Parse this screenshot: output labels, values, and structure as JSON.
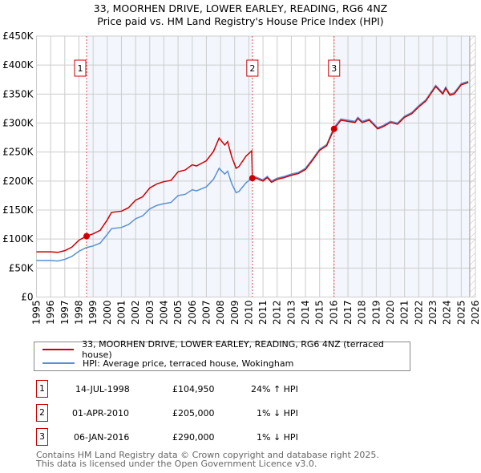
{
  "chart_data": {
    "type": "line",
    "title": "33, MOORHEN DRIVE, LOWER EARLEY, READING, RG6 4NZ",
    "subtitle": "Price paid vs. HM Land Registry's House Price Index (HPI)",
    "xlim": [
      1995,
      2026
    ],
    "ylim": [
      0,
      450000
    ],
    "y_ticks": [
      0,
      50000,
      100000,
      150000,
      200000,
      250000,
      300000,
      350000,
      400000,
      450000
    ],
    "y_tick_labels": [
      "£0",
      "£50K",
      "£100K",
      "£150K",
      "£200K",
      "£250K",
      "£300K",
      "£350K",
      "£400K",
      "£450K"
    ],
    "x_ticks": [
      "1995",
      "1996",
      "1997",
      "1998",
      "1999",
      "2000",
      "2001",
      "2002",
      "2003",
      "2004",
      "2005",
      "2006",
      "2007",
      "2008",
      "2009",
      "2010",
      "2011",
      "2012",
      "2013",
      "2014",
      "2015",
      "2016",
      "2017",
      "2018",
      "2019",
      "2020",
      "2021",
      "2022",
      "2023",
      "2024",
      "2025",
      "2026"
    ],
    "grid": true,
    "hatched_from": 2025.6,
    "series": [
      {
        "name": "33, MOORHEN DRIVE, LOWER EARLEY, READING, RG6 4NZ (terraced house)",
        "color": "#cc0000",
        "x": [
          1995,
          1996,
          1996.5,
          1997,
          1997.5,
          1998,
          1998.54,
          1999,
          1999.5,
          2000,
          2000.3,
          2001,
          2001.5,
          2002,
          2002.5,
          2003,
          2003.5,
          2004,
          2004.5,
          2005,
          2005.5,
          2006,
          2006.3,
          2007,
          2007.5,
          2007.9,
          2008.3,
          2008.5,
          2008.8,
          2009.1,
          2009.3,
          2009.8,
          2010.2,
          2010.25,
          2010.5,
          2011,
          2011.3,
          2011.6,
          2012,
          2012.5,
          2013,
          2013.5,
          2014,
          2014.5,
          2015,
          2015.5,
          2016.02,
          2016.5,
          2017,
          2017.5,
          2017.7,
          2018,
          2018.5,
          2018.9,
          2019.1,
          2019.5,
          2020,
          2020.5,
          2021,
          2021.5,
          2022,
          2022.5,
          2023,
          2023.2,
          2023.7,
          2023.9,
          2024.2,
          2024.5,
          2025,
          2025.5
        ],
        "y": [
          78000,
          78000,
          77000,
          80000,
          86000,
          98000,
          104950,
          109000,
          115000,
          133000,
          146000,
          148000,
          154000,
          167000,
          173000,
          188000,
          195000,
          199000,
          201000,
          216000,
          219000,
          228000,
          226000,
          235000,
          251000,
          274000,
          262000,
          268000,
          241000,
          222000,
          225000,
          243000,
          252000,
          205000,
          205000,
          200000,
          206000,
          198000,
          203000,
          206000,
          210000,
          213000,
          220000,
          236000,
          253000,
          261000,
          290000,
          305000,
          303000,
          301000,
          308000,
          301000,
          305000,
          295000,
          290000,
          294000,
          301000,
          298000,
          310000,
          316000,
          328000,
          338000,
          356000,
          363000,
          350000,
          360000,
          348000,
          350000,
          366000,
          370000
        ]
      },
      {
        "name": "HPI: Average price, terraced house, Wokingham",
        "color": "#5b8fd4",
        "x": [
          1995,
          1996,
          1996.5,
          1997,
          1997.5,
          1998,
          1998.5,
          1999,
          1999.5,
          2000,
          2000.3,
          2001,
          2001.5,
          2002,
          2002.5,
          2003,
          2003.5,
          2004,
          2004.5,
          2005,
          2005.5,
          2006,
          2006.3,
          2007,
          2007.5,
          2007.9,
          2008.3,
          2008.5,
          2008.8,
          2009.1,
          2009.3,
          2009.8,
          2010.25,
          2010.5,
          2011,
          2011.3,
          2011.6,
          2012,
          2012.5,
          2013,
          2013.5,
          2014,
          2014.5,
          2015,
          2015.5,
          2016,
          2016.5,
          2017,
          2017.5,
          2017.7,
          2018,
          2018.5,
          2018.9,
          2019.1,
          2019.5,
          2020,
          2020.5,
          2021,
          2021.5,
          2022,
          2022.5,
          2023,
          2023.2,
          2023.7,
          2023.9,
          2024.2,
          2024.5,
          2025,
          2025.5
        ],
        "y": [
          63000,
          63000,
          62000,
          65000,
          70000,
          79000,
          85000,
          88000,
          93000,
          108000,
          118000,
          120000,
          125000,
          135000,
          140000,
          152000,
          158000,
          161000,
          163000,
          175000,
          177000,
          185000,
          183000,
          190000,
          203000,
          222000,
          212000,
          217000,
          195000,
          180000,
          182000,
          197000,
          206000,
          207000,
          202000,
          208000,
          200000,
          205000,
          208000,
          212000,
          215000,
          222000,
          238000,
          255000,
          263000,
          292000,
          307000,
          305000,
          303000,
          310000,
          303000,
          307000,
          297000,
          292000,
          296000,
          303000,
          300000,
          312000,
          318000,
          330000,
          340000,
          358000,
          365000,
          352000,
          362000,
          350000,
          352000,
          368000,
          372000
        ]
      }
    ],
    "sales": [
      {
        "label": "1",
        "x": 1998.54,
        "y": 104950,
        "date": "14-JUL-1998",
        "price": "£104,950",
        "hpi": "24% ↑ HPI"
      },
      {
        "label": "2",
        "x": 2010.25,
        "y": 205000,
        "date": "01-APR-2010",
        "price": "£205,000",
        "hpi": "1% ↓ HPI"
      },
      {
        "label": "3",
        "x": 2016.02,
        "y": 290000,
        "date": "06-JAN-2016",
        "price": "£290,000",
        "hpi": "1% ↓ HPI"
      }
    ]
  },
  "footer": {
    "line1": "Contains HM Land Registry data © Crown copyright and database right 2025.",
    "line2": "This data is licensed under the Open Government Licence v3.0."
  }
}
